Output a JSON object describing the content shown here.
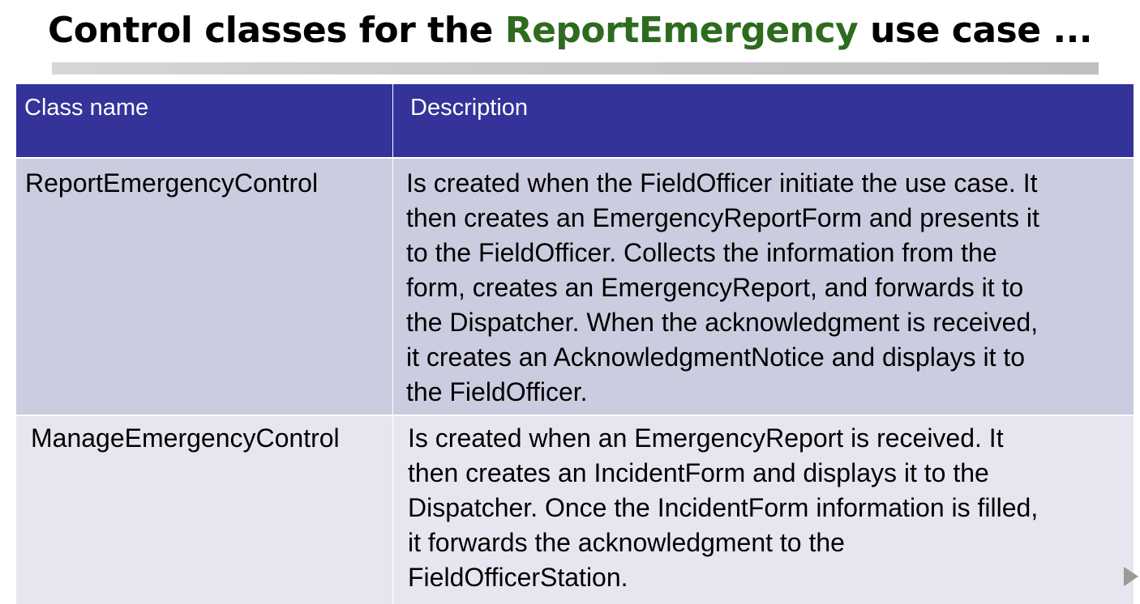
{
  "title": {
    "prefix": "Control classes for the ",
    "accent": "ReportEmergency",
    "suffix": " use case ..."
  },
  "colors": {
    "header_bg": "#333399",
    "row1_bg": "#cccce0",
    "row2_bg": "#e6e6f0",
    "accent": "#2e6b1f"
  },
  "table": {
    "headers": [
      "Class name",
      "Description"
    ],
    "rows": [
      {
        "name": "ReportEmergencyControl",
        "description_lines": [
          "Is created when the FieldOfficer initiate the use case. It",
          "then creates an EmergencyReportForm and presents it",
          "to the FieldOfficer.  Collects the information from the",
          "form, creates an EmergencyReport, and forwards it to",
          "the Dispatcher. When the acknowledgment is received,",
          "it creates an AcknowledgmentNotice and displays it to",
          "the FieldOfficer."
        ]
      },
      {
        "name": "ManageEmergencyControl",
        "description_lines": [
          "Is created when an EmergencyReport is received. It",
          "then creates an IncidentForm and displays it to the",
          "Dispatcher. Once the IncidentForm information is filled,",
          "it forwards the acknowledgment to the",
          "FieldOfficerStation."
        ]
      }
    ]
  },
  "nav": {
    "next_icon": "play-arrow-icon"
  }
}
